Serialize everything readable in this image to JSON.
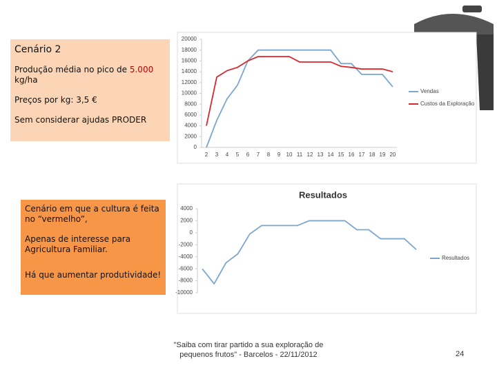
{
  "slide": {
    "box1": {
      "heading": "Cenário 2",
      "line1": "Produção média no pico de",
      "line1_value": "5.000",
      "line1_unit": "kg/ha",
      "line2": "Preços por kg: 3,5 €",
      "line3": "Sem considerar ajudas PRODER"
    },
    "box2": {
      "line1": "Cenário em que a cultura é feita no “vermelho”,",
      "line2": "Apenas de interesse para Agricultura Familiar.",
      "line3": "Há que aumentar produtividade!"
    },
    "footer": "\"Saiba com tirar partido a sua exploração de pequenos frutos\" - Barcelos - 22/11/2012",
    "page_number": "24"
  },
  "chart_data": [
    {
      "type": "line",
      "categories": [
        2,
        3,
        4,
        5,
        6,
        7,
        8,
        9,
        10,
        11,
        12,
        13,
        14,
        15,
        16,
        17,
        18,
        19,
        20
      ],
      "series": [
        {
          "name": "Vendas",
          "color": "#7aa6cf",
          "values": [
            0,
            5000,
            9000,
            11500,
            16000,
            18000,
            18000,
            18000,
            18000,
            18000,
            18000,
            18000,
            18000,
            15500,
            15500,
            13500,
            13500,
            13500,
            11200
          ]
        },
        {
          "name": "Custos da Exploração",
          "color": "#d9262b",
          "values": [
            4000,
            13000,
            14200,
            14800,
            16000,
            16800,
            16800,
            16800,
            16800,
            15800,
            15800,
            15800,
            15800,
            15000,
            14800,
            14500,
            14500,
            14500,
            14000
          ]
        }
      ],
      "ylim": [
        0,
        20000
      ],
      "yticks": [
        0,
        2000,
        4000,
        6000,
        8000,
        10000,
        12000,
        14000,
        16000,
        18000,
        20000
      ],
      "legend": "right"
    },
    {
      "type": "line",
      "title": "Resultados",
      "categories": [
        null,
        null,
        null,
        null,
        null,
        null,
        null,
        null,
        null,
        null,
        null,
        null,
        null,
        null,
        null,
        null,
        null,
        null,
        null
      ],
      "series": [
        {
          "name": "Resultados",
          "color": "#7aa6cf",
          "values": [
            -6000,
            -8500,
            -5000,
            -3500,
            -200,
            1200,
            1200,
            1200,
            1200,
            2000,
            2000,
            2000,
            2000,
            500,
            500,
            -1000,
            -1000,
            -1000,
            -2800
          ]
        }
      ],
      "ylim": [
        -10000,
        4000
      ],
      "yticks": [
        -10000,
        -8000,
        -6000,
        -4000,
        -2000,
        0,
        2000,
        4000
      ],
      "legend": "right"
    }
  ]
}
